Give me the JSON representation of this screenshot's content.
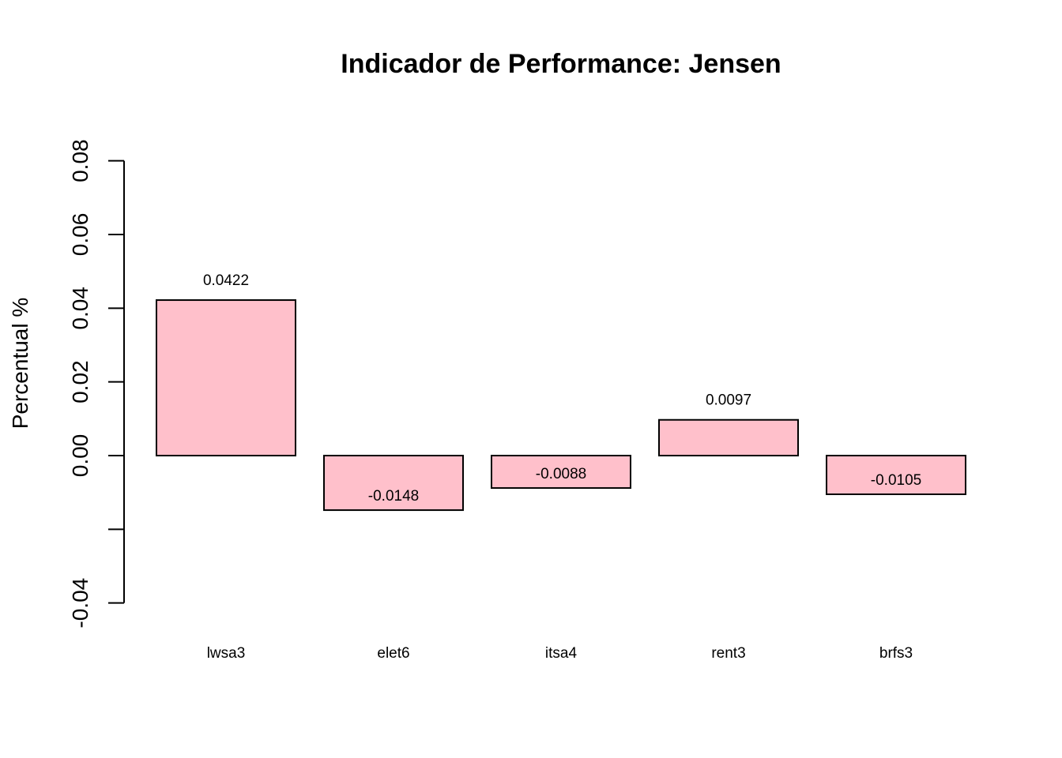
{
  "chart_data": {
    "type": "bar",
    "title": "Indicador de Performance: Jensen",
    "xlabel": "",
    "ylabel": "Percentual %",
    "categories": [
      "lwsa3",
      "elet6",
      "itsa4",
      "rent3",
      "brfs3"
    ],
    "values": [
      0.0422,
      -0.0148,
      -0.0088,
      0.0097,
      -0.0105
    ],
    "data_labels": [
      "0.0422",
      "-0.0148",
      "-0.0088",
      "0.0097",
      "-0.0105"
    ],
    "y_ticks": [
      -0.04,
      -0.02,
      0.0,
      0.02,
      0.04,
      0.06,
      0.08
    ],
    "y_tick_labels": [
      "-0.04",
      "",
      "0.00",
      "0.02",
      "0.04",
      "0.06",
      "0.08"
    ],
    "ylim": [
      -0.04,
      0.08
    ],
    "grid": false,
    "bar_color": "#FFC0CB"
  }
}
